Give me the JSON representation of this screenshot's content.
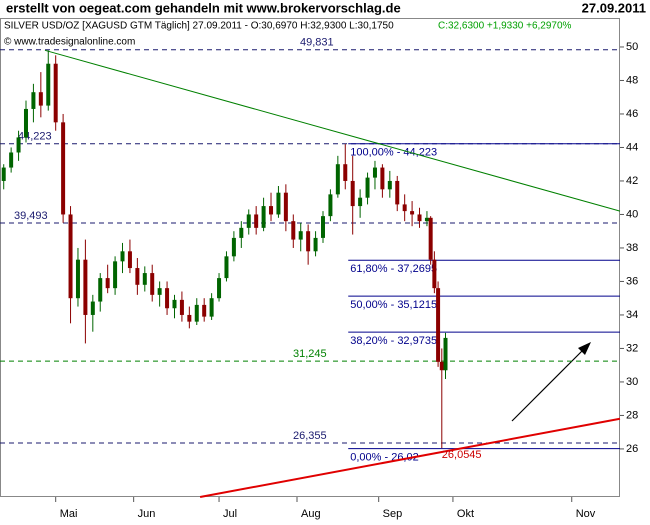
{
  "header": {
    "left": "erstellt von oegeat.com gehandeln mit www.brokervorschlag.de",
    "right": "27.09.2011"
  },
  "chart_data": {
    "type": "candlestick",
    "info": "SILVER USD/OZ [XAGUSD GTM  Täglich] 27.09.2011 - O:30,6970 H:32,9300 L:30,1750",
    "info_change": "C:32,6300 +1,9330 +6,2970%",
    "info_change_color": "#00a000",
    "copyright": "© www.tradesignalonline.com",
    "up_color": "#006400",
    "down_color": "#8b0000",
    "x": [
      -14,
      -12,
      -10,
      -8,
      -6,
      -4,
      -2,
      0,
      2,
      4,
      6,
      8,
      10,
      12,
      14,
      16,
      18,
      20,
      22,
      24,
      26,
      28,
      30,
      32,
      34,
      36,
      38,
      40,
      42,
      44,
      46,
      48,
      50,
      52,
      54,
      56,
      58,
      60,
      62,
      64,
      66,
      68,
      70,
      72,
      74,
      76,
      78,
      80,
      82,
      84,
      86,
      88,
      90,
      92,
      94,
      96,
      98,
      100,
      101,
      102,
      103,
      104,
      105
    ],
    "open": [
      42.0,
      42.8,
      43.7,
      44.6,
      46.3,
      47.3,
      46.5,
      49.0,
      45.5,
      40.0,
      35.0,
      37.3,
      34.0,
      34.8,
      36.2,
      35.6,
      37.2,
      37.8,
      36.8,
      35.8,
      36.5,
      35.2,
      35.6,
      34.4,
      34.9,
      34.0,
      33.6,
      34.6,
      33.9,
      35.0,
      36.2,
      37.5,
      38.6,
      39.2,
      40.0,
      39.2,
      40.5,
      40.0,
      41.3,
      39.6,
      38.5,
      39.0,
      37.8,
      38.6,
      39.9,
      41.2,
      43.0,
      42.0,
      40.5,
      41.0,
      42.2,
      42.8,
      41.5,
      42.0,
      40.6,
      40.2,
      40.0,
      39.6,
      39.8,
      37.3,
      35.6,
      31.2,
      30.697
    ],
    "high": [
      43.0,
      44.0,
      45.0,
      46.8,
      47.8,
      48.5,
      49.8,
      49.5,
      46.0,
      40.5,
      38.0,
      38.5,
      35.2,
      36.5,
      37.0,
      37.5,
      38.3,
      38.5,
      37.4,
      36.9,
      37.0,
      36.0,
      36.0,
      35.2,
      35.4,
      34.5,
      35.0,
      35.0,
      35.3,
      36.5,
      37.8,
      39.0,
      39.6,
      40.3,
      40.5,
      41.0,
      41.3,
      41.7,
      41.8,
      40.0,
      39.5,
      39.4,
      39.0,
      40.2,
      41.5,
      43.5,
      44.2,
      43.5,
      41.5,
      42.5,
      43.2,
      43.0,
      42.6,
      42.3,
      41.2,
      40.8,
      40.4,
      40.2,
      39.9,
      37.8,
      36.0,
      32.0,
      32.93
    ],
    "low": [
      41.5,
      42.5,
      43.2,
      44.3,
      45.5,
      45.8,
      46.2,
      45.0,
      39.5,
      33.5,
      34.5,
      32.3,
      33.0,
      34.2,
      35.3,
      35.2,
      36.5,
      36.5,
      35.2,
      35.4,
      34.8,
      34.5,
      34.0,
      33.8,
      33.6,
      33.2,
      33.4,
      33.6,
      33.7,
      34.8,
      36.0,
      37.2,
      38.0,
      38.8,
      38.8,
      39.0,
      39.6,
      39.8,
      39.0,
      38.0,
      37.8,
      37.0,
      37.5,
      38.3,
      39.6,
      41.0,
      41.5,
      38.8,
      39.8,
      40.6,
      41.5,
      41.0,
      41.0,
      40.2,
      39.6,
      39.3,
      39.2,
      39.3,
      37.0,
      35.3,
      30.9,
      26.0545,
      30.175
    ],
    "close": [
      42.8,
      43.7,
      44.6,
      46.3,
      47.3,
      46.5,
      49.0,
      45.5,
      40.0,
      35.0,
      37.3,
      34.0,
      34.8,
      36.2,
      35.6,
      37.2,
      37.8,
      36.8,
      35.8,
      36.5,
      35.2,
      35.6,
      34.4,
      34.9,
      34.0,
      33.6,
      34.6,
      33.9,
      35.0,
      36.2,
      37.5,
      38.6,
      39.2,
      40.0,
      39.2,
      40.5,
      40.0,
      41.3,
      39.6,
      38.5,
      39.0,
      37.8,
      38.6,
      39.9,
      41.2,
      43.0,
      42.0,
      40.5,
      41.0,
      42.2,
      42.8,
      41.5,
      42.0,
      40.6,
      40.2,
      40.0,
      39.6,
      39.8,
      37.3,
      35.6,
      31.2,
      30.7,
      32.63
    ],
    "xlim": [
      -15,
      152
    ],
    "xticks": [
      {
        "value": 0,
        "label": "Mai"
      },
      {
        "value": 21,
        "label": "Jun"
      },
      {
        "value": 44,
        "label": "Jul"
      },
      {
        "value": 65,
        "label": "Aug"
      },
      {
        "value": 87,
        "label": "Sep"
      },
      {
        "value": 107,
        "label": "Okt"
      },
      {
        "value": 139,
        "label": "Nov"
      }
    ],
    "ylim": [
      23.13,
      51.73
    ],
    "yticks": [
      26,
      28,
      30,
      32,
      34,
      36,
      38,
      40,
      42,
      44,
      46,
      48,
      50
    ],
    "hlines": [
      {
        "value": 49.831,
        "label": "49,831",
        "color": "#1a1a6e"
      },
      {
        "value": 44.223,
        "label": "44,223",
        "color": "#1a1a6e"
      },
      {
        "value": 39.493,
        "label": "39,493",
        "color": "#1a1a6e"
      },
      {
        "value": 31.245,
        "label": "31,245",
        "color": "#008000"
      },
      {
        "value": 26.355,
        "label": "26,355",
        "color": "#1a1a6e"
      }
    ],
    "fib_start": 78.8,
    "fib_color": "#00008b",
    "fib_levels": [
      {
        "value": 44.223,
        "label": "100,00% - 44,223"
      },
      {
        "value": 37.2695,
        "label": "61,80% - 37,2695"
      },
      {
        "value": 35.1215,
        "label": "50,00% - 35,1215"
      },
      {
        "value": 32.9735,
        "label": "38,20% - 32,9735"
      },
      {
        "value": 26.02,
        "label": "0,00% - 26,02"
      }
    ],
    "low_label": {
      "value": 26.0545,
      "label": "26,0545",
      "color": "#cc0000"
    },
    "trendlines": [
      {
        "color": "#008000",
        "x": [
          -2.9,
          152
        ],
        "y": [
          49.8,
          40.2
        ]
      },
      {
        "color": "#e00000",
        "x": [
          38.9,
          152
        ],
        "y": [
          23.13,
          27.8
        ]
      }
    ]
  }
}
